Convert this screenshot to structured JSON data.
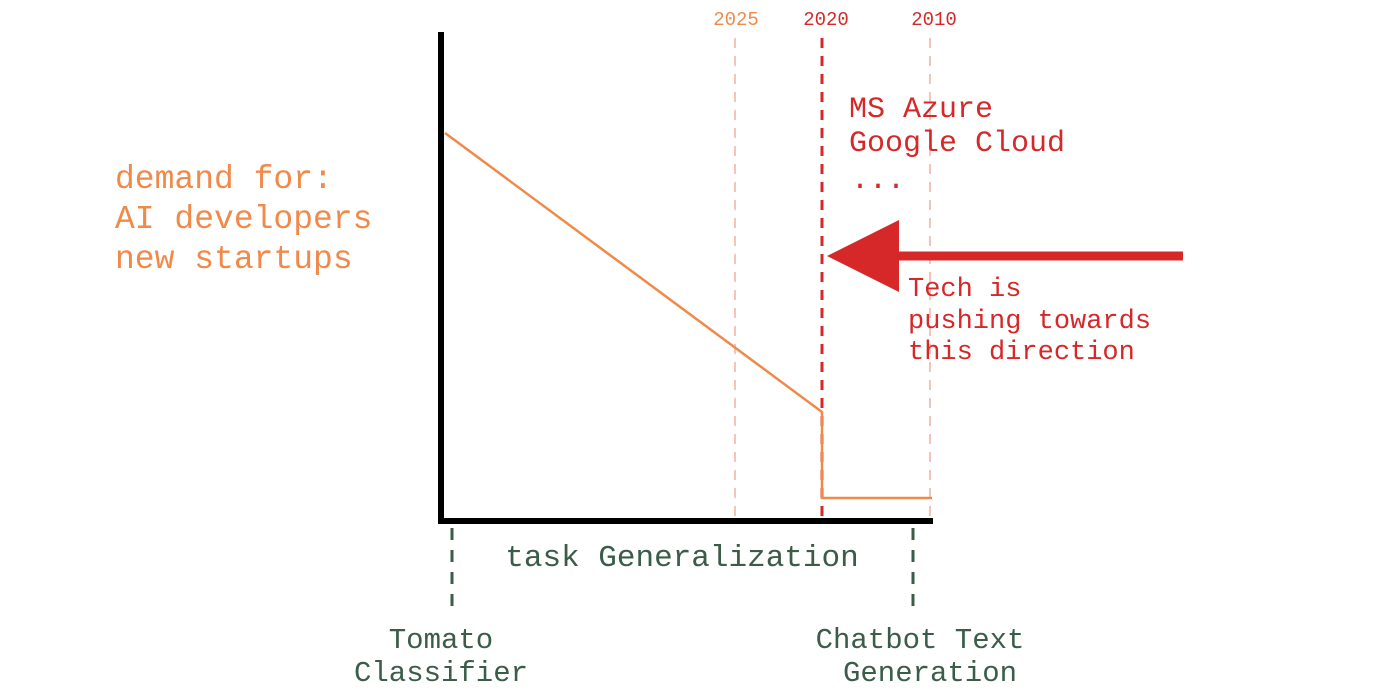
{
  "colors": {
    "orange": "#f08a4b",
    "red": "#d62828",
    "faint_red": "#f5c4b8",
    "green": "#3a5c48",
    "axis": "#000000"
  },
  "year_markers": [
    {
      "label": "2025",
      "style": "faint"
    },
    {
      "label": "2020",
      "style": "strong"
    },
    {
      "label": "2010",
      "style": "faint"
    }
  ],
  "demand_label": [
    "demand for:",
    "AI developers",
    "new startups"
  ],
  "cloud_label": [
    "MS Azure",
    "Google Cloud",
    "..."
  ],
  "arrow_label": [
    "Tech is",
    "pushing towards",
    "this direction"
  ],
  "x_axis_label": "task Generalization",
  "left_endpoint_label": [
    "Tomato",
    "Classifier"
  ],
  "right_endpoint_label": [
    "Chatbot Text",
    "Generation"
  ]
}
